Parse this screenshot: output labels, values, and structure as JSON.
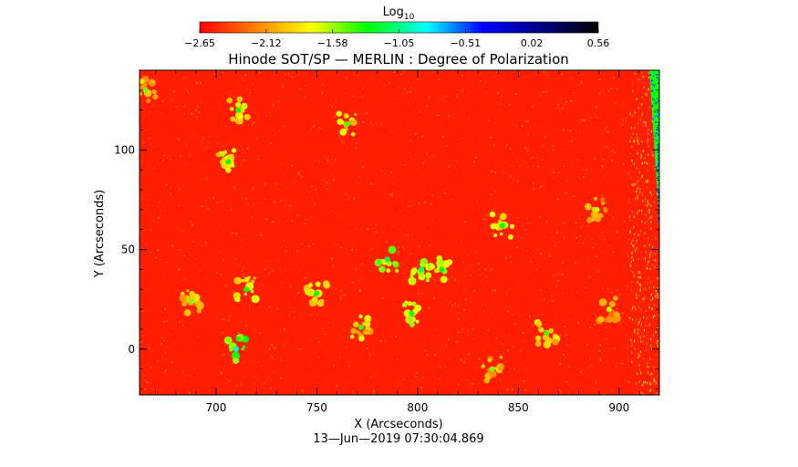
{
  "chart_data": {
    "type": "heatmap",
    "title": "Hinode SOT/SP — MERLIN : Degree of Polarization",
    "xlabel": "X (Arcseconds)",
    "ylabel": "Y (Arcseconds)",
    "timestamp": "13—Jun—2019 07:30:04.869",
    "colorbar": {
      "label_base": "Log",
      "label_sub": "10",
      "ticks": [
        "−2.65",
        "−2.12",
        "−1.58",
        "−1.05",
        "−0.51",
        "0.02",
        "0.56"
      ],
      "range": [
        -2.65,
        0.56
      ],
      "colormap": [
        "#ff0000",
        "#ff8000",
        "#ffff00",
        "#00ff00",
        "#00ffff",
        "#0000ff",
        "#000080",
        "#000000"
      ]
    },
    "xlim": [
      662,
      920
    ],
    "ylim": [
      -23,
      140
    ],
    "xticks": [
      700,
      750,
      800,
      850,
      900
    ],
    "yticks": [
      0,
      50,
      100
    ],
    "background_level": -2.6,
    "limb_x": 905,
    "features": [
      {
        "x": 785,
        "y": 45,
        "level": -1.6
      },
      {
        "x": 802,
        "y": 40,
        "level": -1.6
      },
      {
        "x": 812,
        "y": 40,
        "level": -1.7
      },
      {
        "x": 797,
        "y": 18,
        "level": -1.7
      },
      {
        "x": 772,
        "y": 11,
        "level": -1.9
      },
      {
        "x": 715,
        "y": 30,
        "level": -1.8
      },
      {
        "x": 750,
        "y": 28,
        "level": -1.8
      },
      {
        "x": 710,
        "y": 0,
        "level": -1.4
      },
      {
        "x": 706,
        "y": 94,
        "level": -1.8
      },
      {
        "x": 711,
        "y": 120,
        "level": -1.8
      },
      {
        "x": 765,
        "y": 113,
        "level": -1.9
      },
      {
        "x": 842,
        "y": 62,
        "level": -1.8
      },
      {
        "x": 864,
        "y": 8,
        "level": -1.9
      },
      {
        "x": 837,
        "y": -10,
        "level": -2.0
      },
      {
        "x": 665,
        "y": 130,
        "level": -2.0
      },
      {
        "x": 688,
        "y": 24,
        "level": -2.0
      },
      {
        "x": 889,
        "y": 70,
        "level": -2.1
      },
      {
        "x": 895,
        "y": 20,
        "level": -2.1
      }
    ]
  }
}
